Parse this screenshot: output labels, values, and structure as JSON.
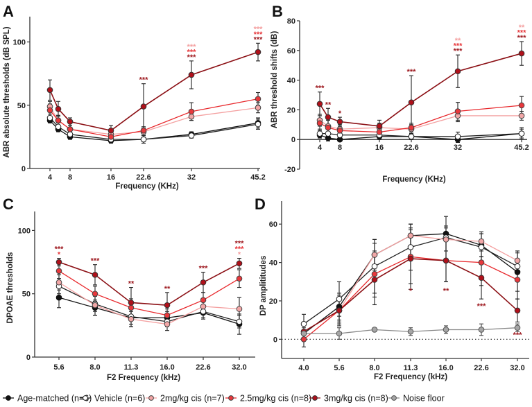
{
  "series_styles": {
    "age": {
      "name": "Age-matched (n=6)",
      "line": "#111111",
      "fill": "#111111",
      "stroke": "#111111"
    },
    "veh": {
      "name": "Vehicle (n=6)",
      "line": "#222222",
      "fill": "#ffffff",
      "stroke": "#222222"
    },
    "c2": {
      "name": "2mg/kg cis (n=7)",
      "line": "#f4a0a0",
      "fill": "#f2a6a6",
      "stroke": "#444444"
    },
    "c25": {
      "name": "2.5mg/kg cis (n=8)",
      "line": "#e8282c",
      "fill": "#e8383c",
      "stroke": "#444444"
    },
    "c3": {
      "name": "3mg/kg cis (n=8)",
      "line": "#8b0f14",
      "fill": "#b0101a",
      "stroke": "#333333"
    },
    "noise": {
      "name": "Noise floor",
      "line": "#888888",
      "fill": "#a6a6a6",
      "stroke": "#555555"
    }
  },
  "sig_colors": {
    "c3": "#9e1a20",
    "c25": "#e8383c",
    "c2": "#f4a0a0"
  },
  "legend": {
    "items": [
      {
        "key": "age",
        "label": "Age-matched (n=6)"
      },
      {
        "key": "veh",
        "label": "Vehicle (n=6)"
      },
      {
        "key": "c2",
        "label": "2mg/kg cis (n=7)"
      },
      {
        "key": "c25",
        "label": "2.5mg/kg cis (n=8)"
      },
      {
        "key": "c3",
        "label": "3mg/kg cis (n=8)"
      },
      {
        "key": "noise",
        "label": "Noise floor"
      }
    ]
  },
  "chart_data": [
    {
      "panel": "A",
      "type": "line",
      "title": "",
      "xlabel": "Frequency (KHz)",
      "ylabel": "ABR absolute thresholds (dB SPL)",
      "x": [
        4,
        5.6,
        8,
        16,
        22.6,
        32,
        45.2
      ],
      "xticks": [
        "4",
        "8",
        "16",
        "22.6",
        "32",
        "45.2"
      ],
      "xtick_values": [
        4,
        8,
        16,
        22.6,
        32,
        45.2
      ],
      "yticks": [
        0,
        50,
        100
      ],
      "ylim": [
        0,
        120
      ],
      "series": [
        {
          "key": "age",
          "name": "Age-matched (n=6)",
          "values": [
            38,
            31,
            25,
            22,
            23,
            27,
            36
          ],
          "err": [
            2,
            2,
            2,
            2,
            3,
            2,
            4
          ]
        },
        {
          "key": "veh",
          "name": "Vehicle (n=6)",
          "values": [
            40,
            33,
            27,
            23,
            23,
            26,
            35
          ],
          "err": [
            3,
            3,
            2,
            2,
            3,
            2,
            4
          ]
        },
        {
          "key": "c2",
          "name": "2mg/kg cis (n=7)",
          "values": [
            49,
            38,
            31,
            27,
            29,
            41,
            48
          ],
          "err": [
            4,
            4,
            3,
            3,
            3,
            3,
            4
          ]
        },
        {
          "key": "c25",
          "name": "2.5mg/kg cis (n=8)",
          "values": [
            46,
            38,
            31,
            25,
            30,
            45,
            55
          ],
          "err": [
            5,
            4,
            3,
            3,
            3,
            7,
            5
          ]
        },
        {
          "key": "c3",
          "name": "3mg/kg cis (n=8)",
          "values": [
            62,
            47,
            37,
            30,
            49,
            74,
            92
          ],
          "err": [
            8,
            6,
            3,
            4,
            18,
            11,
            7
          ]
        }
      ],
      "annotations": [
        {
          "x": 22.6,
          "rows": [
            {
              "text": "***",
              "color": "c3"
            }
          ]
        },
        {
          "x": 32,
          "rows": [
            {
              "text": "***",
              "color": "c2"
            },
            {
              "text": "***",
              "color": "c25"
            },
            {
              "text": "***",
              "color": "c3"
            }
          ]
        },
        {
          "x": 45.2,
          "rows": [
            {
              "text": "***",
              "color": "c2"
            },
            {
              "text": "***",
              "color": "c25"
            },
            {
              "text": "***",
              "color": "c3"
            }
          ]
        }
      ]
    },
    {
      "panel": "B",
      "type": "line",
      "title": "",
      "xlabel": "Frequency (KHz)",
      "ylabel": "ABR threshold shifts (dB)",
      "x": [
        4,
        5.6,
        8,
        16,
        22.6,
        32,
        45.2
      ],
      "xticks": [
        "4",
        "8",
        "16",
        "22.6",
        "32",
        "45.2"
      ],
      "xtick_values": [
        4,
        8,
        16,
        22.6,
        32,
        45.2
      ],
      "yticks": [
        -20,
        0,
        20,
        40,
        60,
        80
      ],
      "ylim": [
        -20,
        80
      ],
      "series": [
        {
          "key": "age",
          "name": "Age-matched (n=6)",
          "values": [
            3,
            1,
            0,
            2,
            2,
            0,
            4
          ],
          "err": [
            2,
            2,
            1,
            2,
            2,
            2,
            3
          ]
        },
        {
          "key": "veh",
          "name": "Vehicle (n=6)",
          "values": [
            4,
            4,
            3,
            3,
            2,
            2,
            4
          ],
          "err": [
            3,
            3,
            2,
            2,
            2,
            3,
            4
          ]
        },
        {
          "key": "c2",
          "name": "2mg/kg cis (n=7)",
          "values": [
            13,
            9,
            7,
            8,
            7,
            16,
            16
          ],
          "err": [
            4,
            4,
            3,
            3,
            3,
            4,
            3
          ]
        },
        {
          "key": "c25",
          "name": "2.5mg/kg cis (n=8)",
          "values": [
            11,
            8,
            6,
            5,
            8,
            19,
            23
          ],
          "err": [
            5,
            5,
            3,
            3,
            3,
            6,
            6
          ]
        },
        {
          "key": "c3",
          "name": "3mg/kg cis (n=8)",
          "values": [
            24,
            15,
            12,
            9,
            25,
            46,
            58
          ],
          "err": [
            8,
            6,
            3,
            4,
            18,
            11,
            8
          ]
        }
      ],
      "annotations": [
        {
          "x": 4,
          "rows": [
            {
              "text": "***",
              "color": "c3"
            }
          ]
        },
        {
          "x": 5.6,
          "rows": [
            {
              "text": "**",
              "color": "c3"
            }
          ]
        },
        {
          "x": 8,
          "rows": [
            {
              "text": "*",
              "color": "c3"
            }
          ]
        },
        {
          "x": 22.6,
          "rows": [
            {
              "text": "***",
              "color": "c3"
            }
          ]
        },
        {
          "x": 32,
          "rows": [
            {
              "text": "**",
              "color": "c2"
            },
            {
              "text": "***",
              "color": "c25"
            },
            {
              "text": "***",
              "color": "c3"
            }
          ]
        },
        {
          "x": 45.2,
          "rows": [
            {
              "text": "**",
              "color": "c2"
            },
            {
              "text": "***",
              "color": "c25"
            },
            {
              "text": "***",
              "color": "c3"
            }
          ]
        }
      ]
    },
    {
      "panel": "C",
      "type": "line",
      "title": "",
      "xlabel": "F2 Frequency (kHz)",
      "ylabel": "DPOAE thresholds",
      "x": [
        "5.6",
        "8.0",
        "11.3",
        "16.0",
        "22.6",
        "32.0"
      ],
      "xticks": [
        "5.6",
        "8.0",
        "11.3",
        "16.0",
        "22.6",
        "32.0"
      ],
      "yticks": [
        0,
        50,
        100
      ],
      "ylim": [
        0,
        115
      ],
      "series": [
        {
          "key": "age",
          "name": "Age-matched (n=6)",
          "values": [
            47,
            39,
            31,
            31,
            35,
            26
          ],
          "err": [
            8,
            6,
            7,
            5,
            5,
            8
          ]
        },
        {
          "key": "veh",
          "name": "Vehicle (n=6)",
          "values": [
            56,
            42,
            32,
            28,
            36,
            28
          ],
          "err": [
            6,
            6,
            6,
            4,
            5,
            5
          ]
        },
        {
          "key": "c2",
          "name": "2mg/kg cis (n=7)",
          "values": [
            59,
            41,
            30,
            26,
            40,
            38
          ],
          "err": [
            6,
            8,
            6,
            5,
            5,
            9
          ]
        },
        {
          "key": "c25",
          "name": "2.5mg/kg cis (n=8)",
          "values": [
            68,
            50,
            39,
            33,
            45,
            62
          ],
          "err": [
            6,
            6,
            7,
            5,
            6,
            7
          ]
        },
        {
          "key": "c3",
          "name": "3mg/kg cis (n=8)",
          "values": [
            75,
            65,
            43,
            41,
            59,
            74
          ],
          "err": [
            3,
            8,
            12,
            10,
            8,
            4
          ]
        }
      ],
      "annotations": [
        {
          "x": "5.6",
          "rows": [
            {
              "text": "***",
              "color": "c3"
            },
            {
              "text": "*",
              "color": "c25"
            }
          ]
        },
        {
          "x": "8.0",
          "rows": [
            {
              "text": "***",
              "color": "c3"
            }
          ]
        },
        {
          "x": "11.3",
          "rows": [
            {
              "text": "**",
              "color": "c3"
            }
          ]
        },
        {
          "x": "16.0",
          "rows": [
            {
              "text": "**",
              "color": "c3"
            }
          ]
        },
        {
          "x": "22.6",
          "rows": [
            {
              "text": "***",
              "color": "c3"
            }
          ]
        },
        {
          "x": "32.0",
          "rows": [
            {
              "text": "***",
              "color": "c3"
            },
            {
              "text": "***",
              "color": "c25"
            },
            {
              "text": "*",
              "color": "c2"
            }
          ]
        }
      ]
    },
    {
      "panel": "D",
      "type": "line",
      "title": "",
      "xlabel": "F2 Frequency (kHz)",
      "ylabel": "DP amplititudes",
      "x": [
        "4.0",
        "5.6",
        "8.0",
        "11.3",
        "16.0",
        "22.6",
        "32.0"
      ],
      "xticks": [
        "4.0",
        "5.6",
        "8.0",
        "11.3",
        "16.0",
        "22.6",
        "32.0"
      ],
      "yticks": [
        0,
        20,
        40,
        60
      ],
      "ylim": [
        -10,
        72
      ],
      "reference_line": {
        "y": 0,
        "style": "dotted"
      },
      "series": [
        {
          "key": "age",
          "name": "Age-matched (n=6)",
          "values": [
            3,
            17,
            44,
            54,
            55,
            49,
            35
          ],
          "err": [
            4,
            7,
            8,
            6,
            4,
            6,
            10
          ]
        },
        {
          "key": "veh",
          "name": "Vehicle (n=6)",
          "values": [
            8,
            21,
            38,
            48,
            53,
            48,
            38
          ],
          "err": [
            5,
            9,
            14,
            12,
            11,
            7,
            8
          ]
        },
        {
          "key": "c2",
          "name": "2mg/kg cis (n=7)",
          "values": [
            4,
            15,
            44,
            54,
            52,
            51,
            41
          ],
          "err": [
            4,
            8,
            6,
            6,
            6,
            5,
            5
          ]
        },
        {
          "key": "c25",
          "name": "2.5mg/kg cis (n=8)",
          "values": [
            0,
            15,
            34,
            43,
            41,
            40,
            31
          ],
          "err": [
            4,
            7,
            12,
            14,
            11,
            12,
            10
          ]
        },
        {
          "key": "c3",
          "name": "3mg/kg cis (n=8)",
          "values": [
            4,
            15,
            31,
            42,
            41,
            32,
            15
          ],
          "err": [
            4,
            6,
            13,
            16,
            11,
            11,
            6
          ]
        },
        {
          "key": "noise",
          "name": "Noise floor",
          "values": [
            3,
            3,
            5,
            4,
            5,
            5,
            6
          ],
          "err": [
            3,
            3,
            1,
            2,
            2,
            3,
            2
          ]
        }
      ],
      "annotations": [
        {
          "x": "11.3",
          "y": 24,
          "rows": [
            {
              "text": "*",
              "color": "c3"
            }
          ]
        },
        {
          "x": "16.0",
          "y": 24,
          "rows": [
            {
              "text": "**",
              "color": "c3"
            }
          ]
        },
        {
          "x": "22.6",
          "y": 16,
          "rows": [
            {
              "text": "***",
              "color": "c3"
            }
          ]
        },
        {
          "x": "32.0",
          "y": 1,
          "rows": [
            {
              "text": "***",
              "color": "c3"
            }
          ]
        }
      ]
    }
  ]
}
